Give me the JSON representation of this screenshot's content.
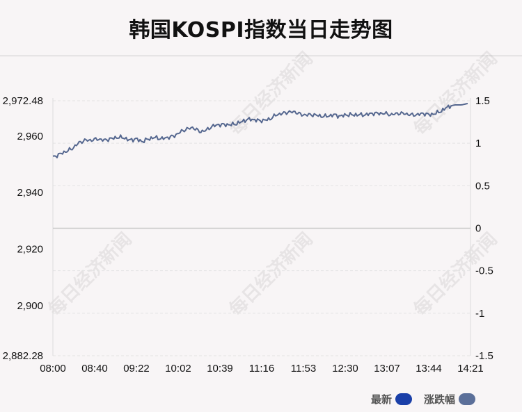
{
  "title": "韩国KOSPI指数当日走势图",
  "watermark_text": "每日经济新闻",
  "colors": {
    "latest": "#1a3fa8",
    "change": "#5b6f99",
    "line": "#55678f",
    "zero_line": "#c8c8c8",
    "grid": "#e3e3e3"
  },
  "legend": [
    {
      "label": "最新",
      "color": "#1a3fa8"
    },
    {
      "label": "涨跌幅",
      "color": "#5b6f99"
    }
  ],
  "chart_data": {
    "type": "line",
    "x_ticks": [
      "08:00",
      "08:40",
      "09:22",
      "10:02",
      "10:39",
      "11:16",
      "11:53",
      "12:30",
      "13:07",
      "13:44",
      "14:21"
    ],
    "y_left_ticks": [
      "2,972.48",
      "2,960",
      "2,940",
      "2,920",
      "2,900",
      "2,882.28"
    ],
    "y_left_values": [
      2972.48,
      2960,
      2940,
      2920,
      2900,
      2882.28
    ],
    "y_right_ticks": [
      "1.5",
      "1",
      "0.5",
      "0",
      "-0.5",
      "-1",
      "-1.5"
    ],
    "y_right_values": [
      1.5,
      1,
      0.5,
      0,
      -0.5,
      -1,
      -1.5
    ],
    "ylim": [
      2882.28,
      2972.48
    ],
    "y2lim": [
      -1.5,
      1.5
    ],
    "baseline": 2927.38,
    "series": [
      {
        "values": [
          2952.5,
          2953.5,
          2954.5,
          2955.5,
          2957.5,
          2958.5,
          2958.5,
          2959,
          2958.5,
          2959,
          2959.5,
          2959.5,
          2958.5,
          2959,
          2958,
          2959,
          2959.5,
          2959,
          2959.5,
          2960,
          2961.5,
          2962.5,
          2963,
          2961.5,
          2962,
          2963.5,
          2964,
          2964,
          2964,
          2964.5,
          2965.5,
          2966,
          2965.5,
          2965.5,
          2966,
          2967.5,
          2968,
          2968.5,
          2968.5,
          2967.5,
          2967.5,
          2967.5,
          2967,
          2967,
          2967.5,
          2967,
          2967.5,
          2967.5,
          2967.5,
          2967.5,
          2968,
          2968,
          2968,
          2967.5,
          2968,
          2968,
          2967.5,
          2967.5,
          2968,
          2967.5,
          2968,
          2969,
          2970.5,
          2971,
          2971,
          2971.5
        ]
      }
    ]
  }
}
